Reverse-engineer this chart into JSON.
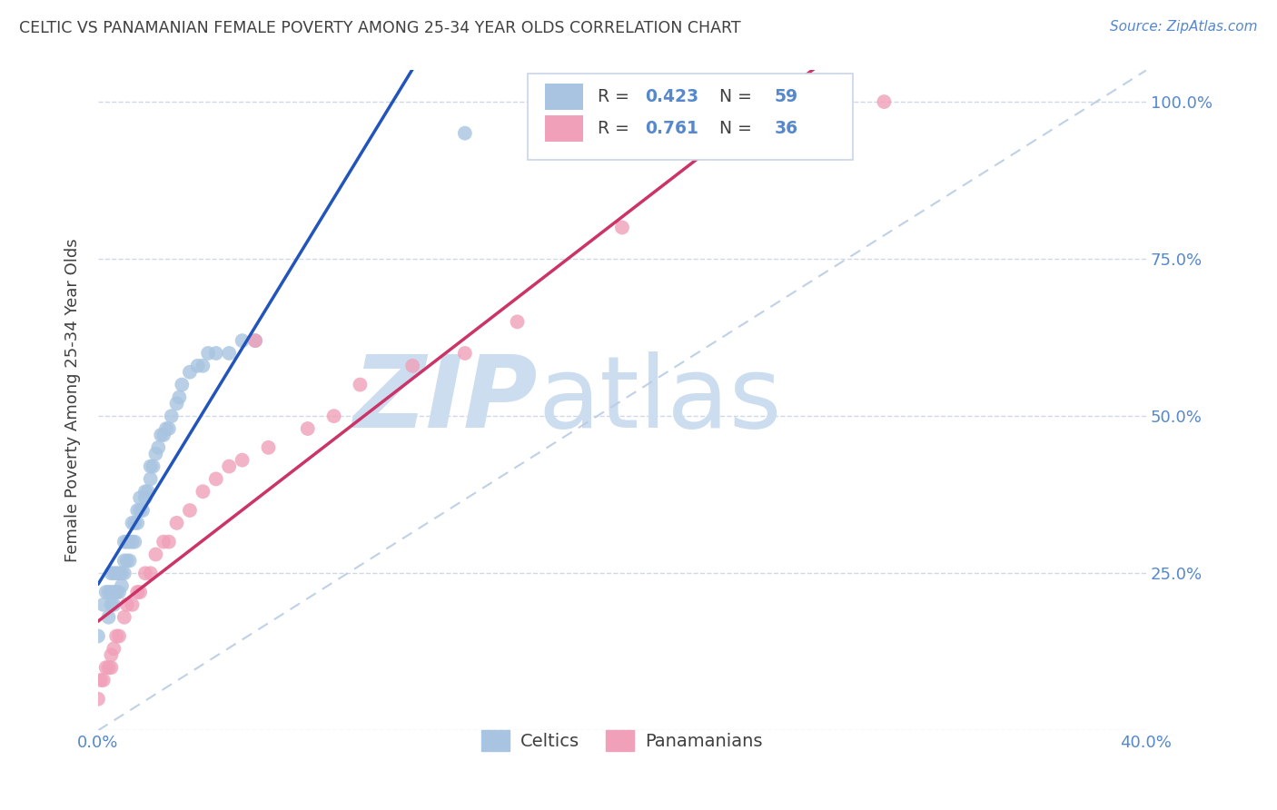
{
  "title": "CELTIC VS PANAMANIAN FEMALE POVERTY AMONG 25-34 YEAR OLDS CORRELATION CHART",
  "source": "Source: ZipAtlas.com",
  "ylabel": "Female Poverty Among 25-34 Year Olds",
  "xlim": [
    0.0,
    0.4
  ],
  "ylim": [
    0.0,
    1.05
  ],
  "celtics_R": 0.423,
  "celtics_N": 59,
  "panamanians_R": 0.761,
  "panamanians_N": 36,
  "celtics_color": "#a8c4e0",
  "celtics_line_color": "#2255bb",
  "panamanians_color": "#f0a0b8",
  "panamanians_line_color": "#cc3366",
  "diagonal_color": "#b8cce4",
  "watermark_color": "#ccddf0",
  "title_color": "#404040",
  "axis_color": "#5588cc",
  "gridline_color": "#d0d8e8",
  "celtics_x": [
    0.0,
    0.002,
    0.003,
    0.004,
    0.004,
    0.005,
    0.005,
    0.005,
    0.006,
    0.006,
    0.006,
    0.007,
    0.007,
    0.007,
    0.008,
    0.008,
    0.009,
    0.009,
    0.01,
    0.01,
    0.01,
    0.011,
    0.011,
    0.012,
    0.012,
    0.013,
    0.013,
    0.014,
    0.014,
    0.015,
    0.015,
    0.016,
    0.016,
    0.017,
    0.018,
    0.018,
    0.019,
    0.02,
    0.02,
    0.021,
    0.022,
    0.023,
    0.024,
    0.025,
    0.026,
    0.027,
    0.028,
    0.03,
    0.031,
    0.032,
    0.035,
    0.038,
    0.04,
    0.042,
    0.045,
    0.05,
    0.055,
    0.06,
    0.14
  ],
  "celtics_y": [
    0.15,
    0.2,
    0.22,
    0.18,
    0.22,
    0.2,
    0.22,
    0.25,
    0.2,
    0.22,
    0.25,
    0.22,
    0.22,
    0.25,
    0.22,
    0.25,
    0.23,
    0.25,
    0.25,
    0.27,
    0.3,
    0.27,
    0.3,
    0.27,
    0.3,
    0.3,
    0.33,
    0.3,
    0.33,
    0.33,
    0.35,
    0.35,
    0.37,
    0.35,
    0.37,
    0.38,
    0.38,
    0.4,
    0.42,
    0.42,
    0.44,
    0.45,
    0.47,
    0.47,
    0.48,
    0.48,
    0.5,
    0.52,
    0.53,
    0.55,
    0.57,
    0.58,
    0.58,
    0.6,
    0.6,
    0.6,
    0.62,
    0.62,
    0.95
  ],
  "panamanians_x": [
    0.0,
    0.001,
    0.002,
    0.003,
    0.004,
    0.005,
    0.005,
    0.006,
    0.007,
    0.008,
    0.01,
    0.011,
    0.013,
    0.015,
    0.016,
    0.018,
    0.02,
    0.022,
    0.025,
    0.027,
    0.03,
    0.035,
    0.04,
    0.045,
    0.05,
    0.055,
    0.06,
    0.065,
    0.08,
    0.09,
    0.1,
    0.12,
    0.14,
    0.16,
    0.2,
    0.3
  ],
  "panamanians_y": [
    0.05,
    0.08,
    0.08,
    0.1,
    0.1,
    0.1,
    0.12,
    0.13,
    0.15,
    0.15,
    0.18,
    0.2,
    0.2,
    0.22,
    0.22,
    0.25,
    0.25,
    0.28,
    0.3,
    0.3,
    0.33,
    0.35,
    0.38,
    0.4,
    0.42,
    0.43,
    0.62,
    0.45,
    0.48,
    0.5,
    0.55,
    0.58,
    0.6,
    0.65,
    0.8,
    1.0
  ]
}
